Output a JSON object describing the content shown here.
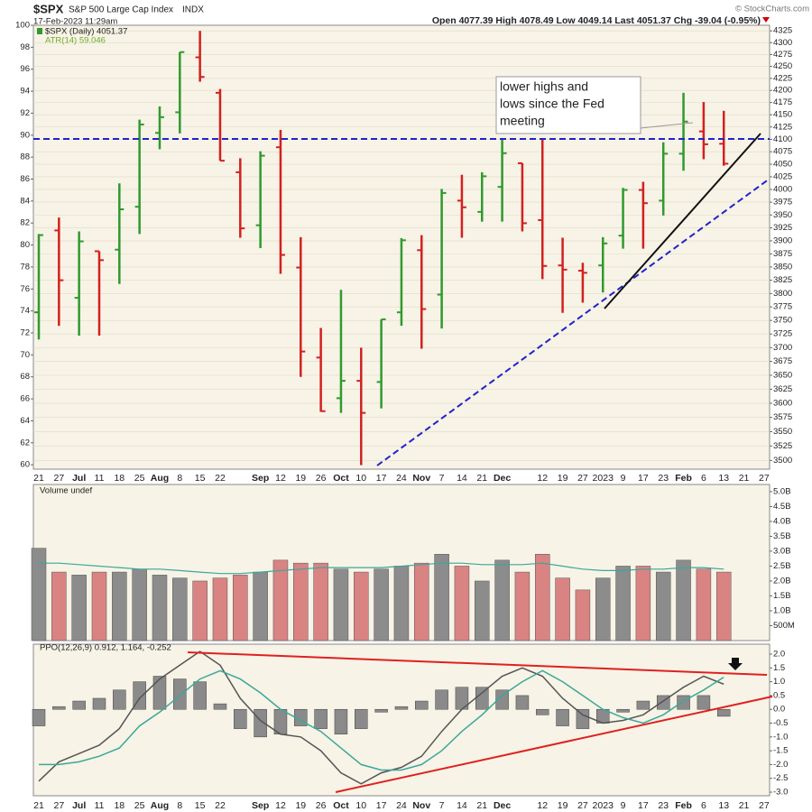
{
  "header": {
    "symbol": "$SPX",
    "name": "S&P 500 Large Cap Index",
    "exchange": "INDX",
    "date": "17-Feb-2023 11:29am",
    "quote": "Open 4077.39 High 4078.49 Low 4049.14 Last 4051.37 Chg -39.04 (-0.95%)",
    "credit": "© StockCharts.com"
  },
  "chart_data": [
    {
      "type": "ohlc",
      "legend": [
        "$SPX (Daily) 4051.37",
        "ATR(14) 59.046"
      ],
      "annotation": [
        "lower highs and",
        "lows since the Fed",
        "meeting"
      ],
      "categories": [
        "21",
        "27",
        "Jul",
        "11",
        "18",
        "25",
        "Aug",
        "8",
        "15",
        "22",
        null,
        "Sep",
        "12",
        "19",
        "26",
        "Oct",
        "10",
        "17",
        "24",
        "Nov",
        "7",
        "14",
        "21",
        "Dec",
        null,
        "12",
        "19",
        "27",
        "2023",
        "9",
        "17",
        "23",
        "Feb",
        "6",
        "13",
        "21",
        "27"
      ],
      "open": [
        3765,
        3920,
        3792,
        3880,
        3883,
        3966,
        4113,
        4155,
        4269,
        4195,
        4034,
        3930,
        4084,
        3849,
        3682,
        3609,
        3640,
        3638,
        3765,
        3882,
        3798,
        3978,
        3956,
        4005,
        4052,
        3940,
        3853,
        3843,
        3853,
        3910,
        3999,
        3978,
        4071,
        4116,
        4091,
        null,
        null
      ],
      "high": [
        3913,
        3945,
        3918,
        3880,
        4012,
        4140,
        4167,
        4280,
        4325,
        4203,
        4062,
        4076,
        4119,
        3907,
        3736,
        3807,
        3700,
        3752,
        3905,
        3911,
        4001,
        4029,
        4034,
        4101,
        4052,
        4100,
        3906,
        3858,
        3907,
        4003,
        4015,
        4094,
        4195,
        4176,
        4158,
        null,
        null
      ],
      "low": [
        3715,
        3740,
        3722,
        3722,
        3818,
        3913,
        4080,
        4112,
        4218,
        4057,
        3906,
        3886,
        3837,
        3647,
        3585,
        3583,
        3492,
        3591,
        3740,
        3698,
        3735,
        3906,
        3937,
        3937,
        3918,
        3827,
        3764,
        3783,
        3802,
        3885,
        3885,
        3949,
        4037,
        4060,
        4047,
        null,
        null
      ],
      "close": [
        3911,
        3825,
        3899,
        3863,
        3961,
        4130,
        4145,
        4280,
        4228,
        4057,
        3924,
        4067,
        3873,
        3693,
        3586,
        3640,
        3583,
        3752,
        3901,
        3771,
        3993,
        3965,
        4026,
        4072,
        3934,
        3852,
        3845,
        3839,
        3895,
        3999,
        3973,
        4071,
        4136,
        4090,
        4051,
        null,
        null
      ],
      "up_color": "#2f9a2f",
      "down_color": "#d32020",
      "log_scale": true,
      "ylim": [
        3485,
        4337
      ],
      "yticks": [
        3500,
        3525,
        3550,
        3575,
        3600,
        3625,
        3650,
        3675,
        3700,
        3725,
        3750,
        3775,
        3800,
        3825,
        3850,
        3875,
        3900,
        3925,
        3950,
        3975,
        4000,
        4025,
        4050,
        4075,
        4100,
        4125,
        4150,
        4175,
        4200,
        4225,
        4250,
        4275,
        4300,
        4325
      ],
      "y2lim": [
        59.6,
        100
      ],
      "y2ticks": [
        60,
        62,
        64,
        66,
        68,
        70,
        72,
        74,
        76,
        78,
        80,
        82,
        84,
        86,
        88,
        90,
        92,
        94,
        96,
        98,
        100
      ],
      "grid": true
    },
    {
      "type": "bar",
      "title": "Volume undef",
      "ylim": [
        0,
        5240000000.0
      ],
      "yticks": [
        {
          "value": 5000000000.0,
          "label": "5.0B"
        },
        {
          "value": 4500000000.0,
          "label": "4.5B"
        },
        {
          "value": 4000000000.0,
          "label": "4.0B"
        },
        {
          "value": 3500000000.0,
          "label": "3.5B"
        },
        {
          "value": 3000000000.0,
          "label": "3.0B"
        },
        {
          "value": 2500000000.0,
          "label": "2.5B"
        },
        {
          "value": 2000000000.0,
          "label": "2.0B"
        },
        {
          "value": 1500000000.0,
          "label": "1.5B"
        },
        {
          "value": 1000000000.0,
          "label": "1.0B"
        },
        {
          "value": 500000000.0,
          "label": "500M"
        }
      ],
      "up_color": "#8c8c8c",
      "down_color": "#d98383",
      "series": [
        {
          "style": "bars",
          "values": [
            3100000000.0,
            2300000000.0,
            2200000000.0,
            2300000000.0,
            2300000000.0,
            2400000000.0,
            2200000000.0,
            2100000000.0,
            2000000000.0,
            2100000000.0,
            2200000000.0,
            2300000000.0,
            2700000000.0,
            2600000000.0,
            2600000000.0,
            2400000000.0,
            2300000000.0,
            2400000000.0,
            2500000000.0,
            2600000000.0,
            2900000000.0,
            2500000000.0,
            2000000000.0,
            2700000000.0,
            2300000000.0,
            2900000000.0,
            2100000000.0,
            1700000000.0,
            2100000000.0,
            2500000000.0,
            2500000000.0,
            2300000000.0,
            2700000000.0,
            2400000000.0,
            2300000000.0,
            null,
            null
          ]
        },
        {
          "style": "line",
          "color": "#3aa89a",
          "values": [
            2600000000.0,
            2600000000.0,
            2550000000.0,
            2500000000.0,
            2450000000.0,
            2400000000.0,
            2400000000.0,
            2350000000.0,
            2300000000.0,
            2250000000.0,
            2250000000.0,
            2300000000.0,
            2350000000.0,
            2400000000.0,
            2450000000.0,
            2450000000.0,
            2450000000.0,
            2450000000.0,
            2500000000.0,
            2550000000.0,
            2600000000.0,
            2600000000.0,
            2550000000.0,
            2550000000.0,
            2550000000.0,
            2600000000.0,
            2500000000.0,
            2400000000.0,
            2350000000.0,
            2350000000.0,
            2400000000.0,
            2400000000.0,
            2450000000.0,
            2450000000.0,
            2400000000.0,
            null,
            null
          ]
        }
      ]
    },
    {
      "type": "line",
      "title": "PPO(12,26,9) 0.912, 1.164, -0.252",
      "ylim": [
        -3.13,
        2.36
      ],
      "yticks": [
        {
          "value": 2,
          "label": "2.0"
        },
        {
          "value": 1.5,
          "label": "1.5"
        },
        {
          "value": 1,
          "label": "1.0"
        },
        {
          "value": 0.5,
          "label": "0.5"
        },
        {
          "value": 0,
          "label": "0.0"
        },
        {
          "value": -0.5,
          "label": "-0.5"
        },
        {
          "value": -1,
          "label": "-1.0"
        },
        {
          "value": -1.5,
          "label": "-1.5"
        },
        {
          "value": -2,
          "label": "-2.0"
        },
        {
          "value": -2.5,
          "label": "-2.5"
        },
        {
          "value": -3,
          "label": "-3.0"
        }
      ],
      "series": [
        {
          "style": "bars",
          "color": "#8a8a8a",
          "values": [
            -0.6,
            0.1,
            0.3,
            0.4,
            0.7,
            1.0,
            1.2,
            1.1,
            1.0,
            0.2,
            -0.7,
            -1.0,
            -0.9,
            -0.6,
            -0.7,
            -0.9,
            -0.7,
            -0.1,
            0.1,
            0.3,
            0.7,
            0.8,
            0.8,
            0.7,
            0.5,
            -0.2,
            -0.6,
            -0.7,
            -0.5,
            -0.1,
            0.3,
            0.5,
            0.5,
            0.5,
            -0.252,
            null,
            null
          ]
        },
        {
          "style": "line",
          "color": "#555555",
          "values": [
            -2.6,
            -1.9,
            -1.6,
            -1.3,
            -0.7,
            0.4,
            1.1,
            1.6,
            2.1,
            1.6,
            0.4,
            -0.4,
            -0.9,
            -1.0,
            -1.5,
            -2.3,
            -2.7,
            -2.3,
            -2.1,
            -1.7,
            -0.8,
            0.0,
            0.6,
            1.2,
            1.5,
            1.2,
            0.4,
            -0.2,
            -0.5,
            -0.4,
            -0.2,
            0.3,
            0.8,
            1.2,
            0.912,
            null,
            null
          ]
        },
        {
          "style": "line",
          "color": "#3aa89a",
          "values": [
            -2.0,
            -2.0,
            -1.9,
            -1.7,
            -1.4,
            -0.6,
            -0.1,
            0.5,
            1.1,
            1.4,
            1.1,
            0.6,
            0.0,
            -0.4,
            -0.8,
            -1.4,
            -2.0,
            -2.2,
            -2.2,
            -2.0,
            -1.5,
            -0.8,
            -0.2,
            0.5,
            1.0,
            1.4,
            1.0,
            0.5,
            0.0,
            -0.3,
            -0.5,
            -0.2,
            0.3,
            0.7,
            1.164,
            null,
            null
          ]
        }
      ]
    }
  ]
}
